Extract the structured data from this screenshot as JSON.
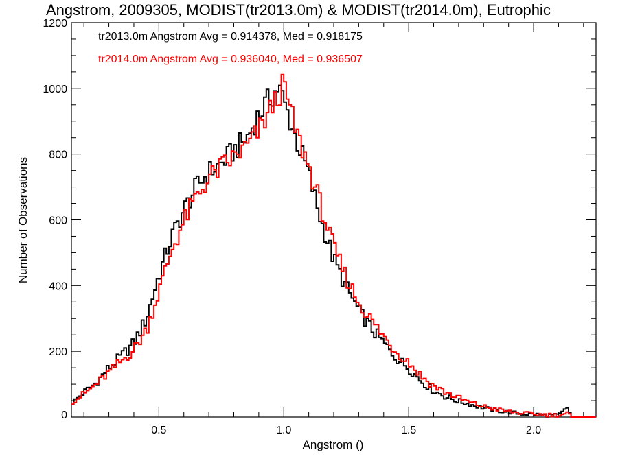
{
  "chart_data": {
    "type": "histogram-step",
    "title": "Angstrom, 2009305, MODIST(tr2013.0m) & MODIST(tr2014.0m), Eutrophic",
    "xlabel": "Angstrom ()",
    "ylabel": "Number of Observations",
    "xlim": [
      0.15,
      2.25
    ],
    "ylim": [
      0,
      1200
    ],
    "xticks": [
      "0.5",
      "1.0",
      "1.5",
      "2.0"
    ],
    "yticks": [
      "0",
      "200",
      "400",
      "600",
      "800",
      "1000",
      "1200"
    ],
    "legend_placement": "top-left",
    "bin_width": 0.01,
    "series": [
      {
        "name": "tr2013.0m",
        "label": "tr2013.0m Angstrom Avg = 0.914378, Med = 0.918175",
        "color": "#000000",
        "x": [
          0.15,
          0.2,
          0.25,
          0.3,
          0.35,
          0.4,
          0.45,
          0.5,
          0.55,
          0.6,
          0.65,
          0.7,
          0.75,
          0.8,
          0.85,
          0.9,
          0.95,
          0.98,
          1.0,
          1.05,
          1.1,
          1.15,
          1.2,
          1.25,
          1.3,
          1.35,
          1.4,
          1.45,
          1.5,
          1.55,
          1.6,
          1.65,
          1.7,
          1.75,
          1.8,
          1.85,
          1.9,
          1.95,
          2.0,
          2.05,
          2.1,
          2.14,
          2.15,
          2.2,
          2.25
        ],
        "y": [
          40,
          75,
          105,
          150,
          185,
          225,
          300,
          430,
          545,
          630,
          700,
          745,
          770,
          810,
          845,
          920,
          975,
          1005,
          960,
          845,
          740,
          595,
          480,
          395,
          325,
          270,
          225,
          180,
          150,
          110,
          80,
          62,
          48,
          38,
          28,
          20,
          15,
          10,
          8,
          6,
          5,
          30,
          0,
          0,
          0
        ]
      },
      {
        "name": "tr2014.0m",
        "label": "tr2014.0m Angstrom Avg = 0.936040, Med = 0.936507",
        "color": "#ff0000",
        "x": [
          0.15,
          0.2,
          0.25,
          0.3,
          0.35,
          0.4,
          0.45,
          0.5,
          0.55,
          0.6,
          0.65,
          0.7,
          0.75,
          0.8,
          0.85,
          0.9,
          0.95,
          0.98,
          1.0,
          1.05,
          1.1,
          1.15,
          1.2,
          1.25,
          1.3,
          1.35,
          1.4,
          1.45,
          1.5,
          1.55,
          1.6,
          1.65,
          1.7,
          1.75,
          1.8,
          1.85,
          1.9,
          1.95,
          2.0,
          2.05,
          2.1,
          2.14,
          2.15,
          2.2,
          2.25
        ],
        "y": [
          45,
          70,
          100,
          135,
          170,
          205,
          265,
          380,
          505,
          595,
          670,
          725,
          760,
          790,
          820,
          870,
          940,
          980,
          1010,
          865,
          765,
          640,
          515,
          425,
          350,
          295,
          245,
          200,
          168,
          125,
          95,
          75,
          58,
          43,
          32,
          24,
          17,
          12,
          9,
          7,
          6,
          12,
          0,
          0,
          0
        ]
      }
    ]
  }
}
